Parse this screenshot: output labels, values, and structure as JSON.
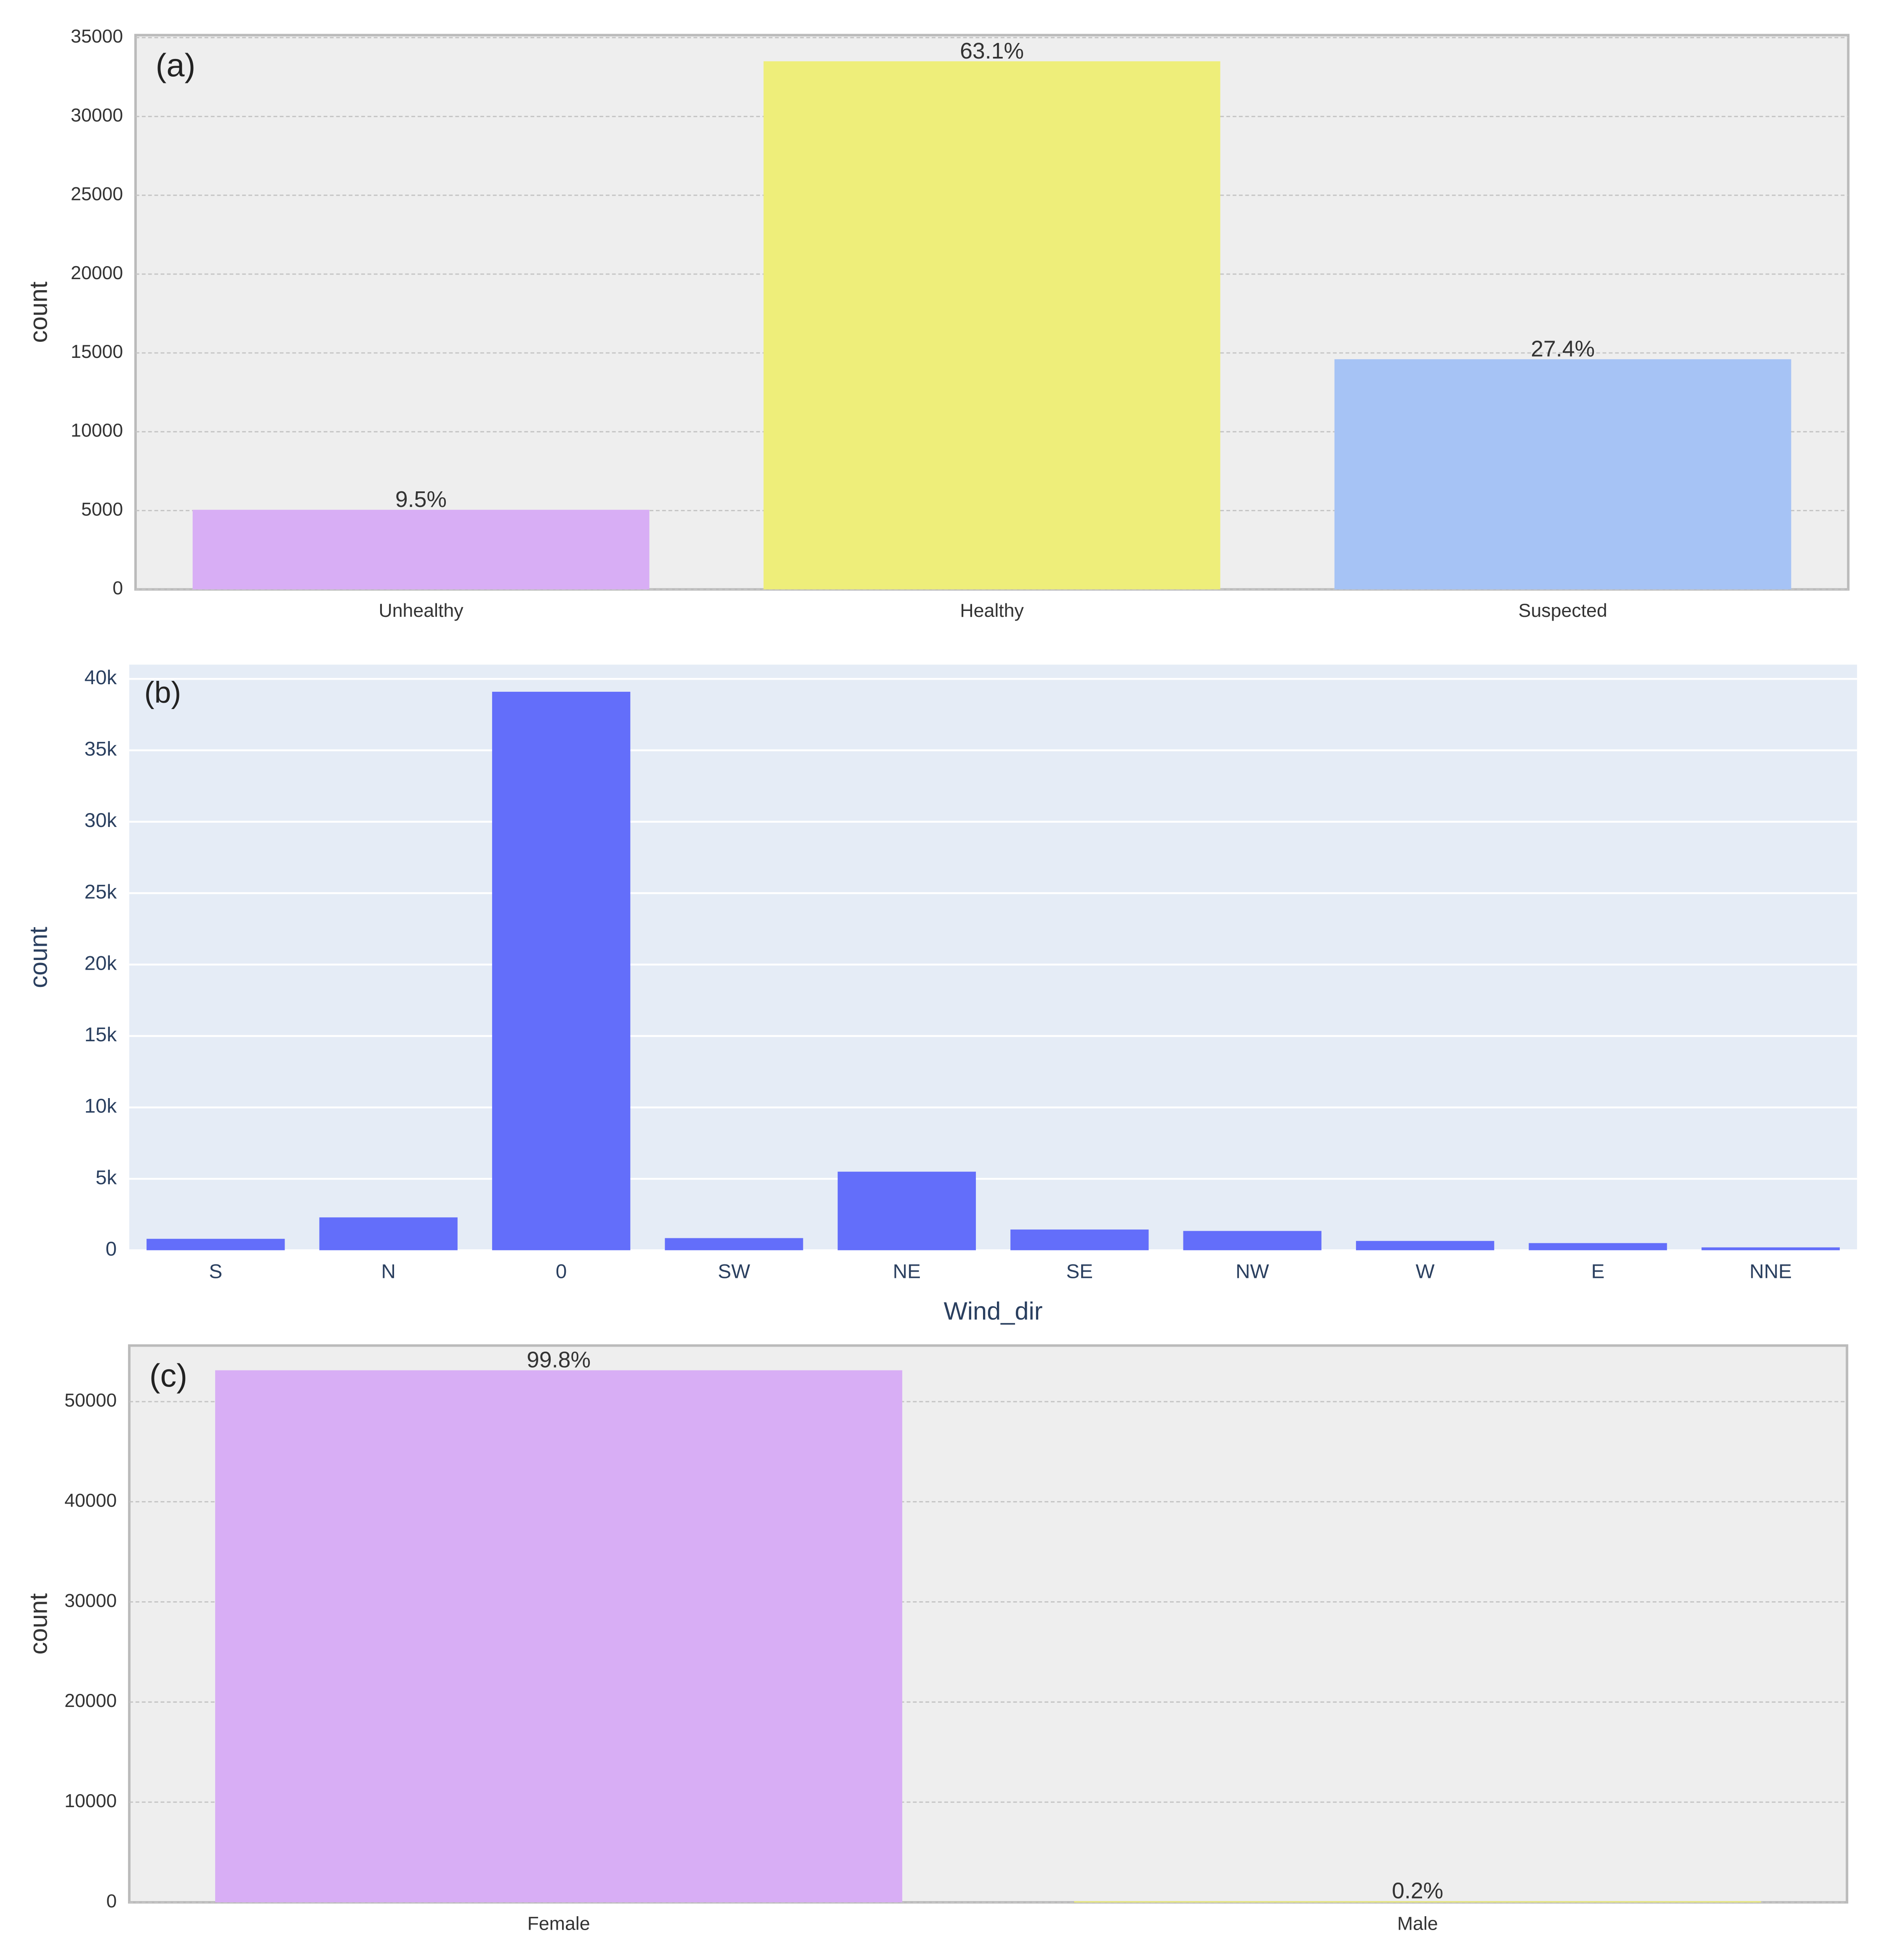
{
  "chart_data": [
    {
      "type": "bar",
      "panel_label": "(a)",
      "ylabel": "count",
      "categories": [
        "Unhealthy",
        "Healthy",
        "Suspected"
      ],
      "values": [
        5050,
        33500,
        14600
      ],
      "annotations": [
        "9.5%",
        "63.1%",
        "27.4%"
      ],
      "colors": [
        "#d8aef5",
        "#eeee7a",
        "#a6c3f5"
      ],
      "ylim": [
        0,
        35160
      ],
      "yticks": [
        0,
        5000,
        10000,
        15000,
        20000,
        25000,
        30000,
        35000
      ],
      "grid": true
    },
    {
      "type": "bar",
      "panel_label": "(b)",
      "ylabel": "count",
      "xlabel": "Wind_dir",
      "categories": [
        "S",
        "N",
        "0",
        "SW",
        "NE",
        "SE",
        "NW",
        "W",
        "E",
        "NNE"
      ],
      "values": [
        800,
        2300,
        39100,
        850,
        5500,
        1450,
        1350,
        650,
        500,
        200
      ],
      "color": "#636efa",
      "ylim": [
        0,
        41000
      ],
      "yticks": [
        0,
        {
          "value": 5000,
          "label": "5k"
        },
        {
          "value": 10000,
          "label": "10k"
        },
        {
          "value": 15000,
          "label": "15k"
        },
        {
          "value": 20000,
          "label": "20k"
        },
        {
          "value": 25000,
          "label": "25k"
        },
        {
          "value": 30000,
          "label": "30k"
        },
        {
          "value": 35000,
          "label": "35k"
        },
        {
          "value": 40000,
          "label": "40k"
        }
      ],
      "grid": true
    },
    {
      "type": "bar",
      "panel_label": "(c)",
      "ylabel": "count",
      "categories": [
        "Female",
        "Male"
      ],
      "values": [
        53130,
        107
      ],
      "annotations": [
        "99.8%",
        "0.2%"
      ],
      "colors": [
        "#d8aef5",
        "#eeee7a"
      ],
      "ylim": [
        0,
        55600
      ],
      "yticks": [
        0,
        10000,
        20000,
        30000,
        40000,
        50000
      ],
      "grid": true
    }
  ]
}
